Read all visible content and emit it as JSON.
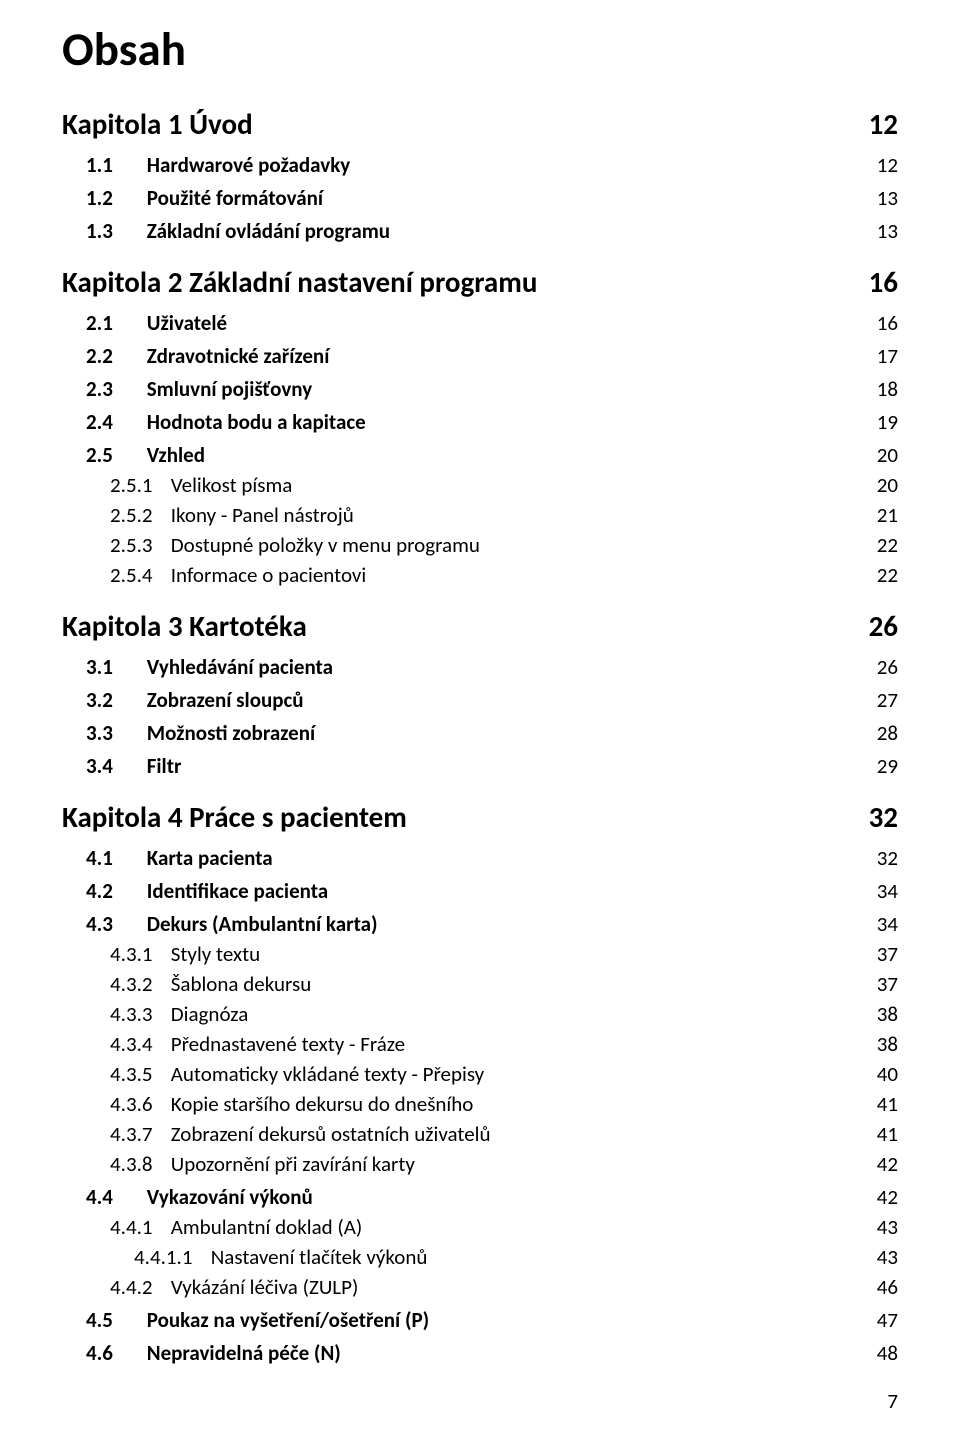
{
  "document_title": "Obsah",
  "page_number": "7",
  "toc": [
    {
      "level": "chapter",
      "num": "Kapitola 1",
      "sep": "   ",
      "label": "Úvod",
      "page": "12"
    },
    {
      "level": "section",
      "num": "1.1",
      "label": "Hardwarové požadavky",
      "page": "12"
    },
    {
      "level": "section",
      "num": "1.2",
      "label": "Použité formátování",
      "page": "13"
    },
    {
      "level": "section",
      "num": "1.3",
      "label": "Základní ovládání programu",
      "page": "13"
    },
    {
      "level": "chapter",
      "num": "Kapitola 2",
      "sep": "   ",
      "label": "Základní nastavení programu",
      "page": "16"
    },
    {
      "level": "section",
      "num": "2.1",
      "label": "Uživatelé",
      "page": "16"
    },
    {
      "level": "section",
      "num": "2.2",
      "label": "Zdravotnické zařízení",
      "page": "17"
    },
    {
      "level": "section",
      "num": "2.3",
      "label": "Smluvní pojišťovny",
      "page": "18"
    },
    {
      "level": "section",
      "num": "2.4",
      "label": "Hodnota bodu a kapitace",
      "page": "19"
    },
    {
      "level": "section",
      "num": "2.5",
      "label": "Vzhled",
      "page": "20"
    },
    {
      "level": "subsection",
      "num": "2.5.1",
      "label": "Velikost písma",
      "page": "20"
    },
    {
      "level": "subsection",
      "num": "2.5.2",
      "label": "Ikony - Panel nástrojů",
      "page": "21"
    },
    {
      "level": "subsection",
      "num": "2.5.3",
      "label": "Dostupné položky v menu programu",
      "page": "22"
    },
    {
      "level": "subsection",
      "num": "2.5.4",
      "label": "Informace o pacientovi",
      "page": "22"
    },
    {
      "level": "chapter",
      "num": "Kapitola 3",
      "sep": "   ",
      "label": "Kartotéka",
      "page": "26"
    },
    {
      "level": "section",
      "num": "3.1",
      "label": "Vyhledávání pacienta",
      "page": "26"
    },
    {
      "level": "section",
      "num": "3.2",
      "label": "Zobrazení sloupců",
      "page": "27"
    },
    {
      "level": "section",
      "num": "3.3",
      "label": "Možnosti zobrazení",
      "page": "28"
    },
    {
      "level": "section",
      "num": "3.4",
      "label": "Filtr",
      "page": "29"
    },
    {
      "level": "chapter",
      "num": "Kapitola 4",
      "sep": "   ",
      "label": "Práce s pacientem",
      "page": "32"
    },
    {
      "level": "section",
      "num": "4.1",
      "label": "Karta pacienta",
      "page": "32"
    },
    {
      "level": "section",
      "num": "4.2",
      "label": "Identifikace pacienta",
      "page": "34"
    },
    {
      "level": "section",
      "num": "4.3",
      "label": "Dekurs (Ambulantní karta)",
      "page": "34"
    },
    {
      "level": "subsection",
      "num": "4.3.1",
      "label": "Styly textu",
      "page": "37"
    },
    {
      "level": "subsection",
      "num": "4.3.2",
      "label": "Šablona dekursu",
      "page": "37"
    },
    {
      "level": "subsection",
      "num": "4.3.3",
      "label": "Diagnóza",
      "page": "38"
    },
    {
      "level": "subsection",
      "num": "4.3.4",
      "label": "Přednastavené texty - Fráze",
      "page": "38"
    },
    {
      "level": "subsection",
      "num": "4.3.5",
      "label": "Automaticky vkládané texty - Přepisy",
      "page": "40"
    },
    {
      "level": "subsection",
      "num": "4.3.6",
      "label": "Kopie staršího dekursu do dnešního",
      "page": "41"
    },
    {
      "level": "subsection",
      "num": "4.3.7",
      "label": "Zobrazení dekursů ostatních uživatelů",
      "page": "41"
    },
    {
      "level": "subsection",
      "num": "4.3.8",
      "label": "Upozornění při zavírání karty",
      "page": "42"
    },
    {
      "level": "section",
      "num": "4.4",
      "label": "Vykazování výkonů",
      "page": "42"
    },
    {
      "level": "subsection",
      "num": "4.4.1",
      "label": "Ambulantní doklad (A)",
      "page": "43"
    },
    {
      "level": "subsubsection",
      "num": "4.4.1.1",
      "label": "Nastavení tlačítek výkonů",
      "page": "43"
    },
    {
      "level": "subsection",
      "num": "4.4.2",
      "label": "Vykázání léčiva (ZULP)",
      "page": "46"
    },
    {
      "level": "section",
      "num": "4.5",
      "label": "Poukaz na vyšetření/ošetření (P)",
      "page": "47"
    },
    {
      "level": "section",
      "num": "4.6",
      "label": "Nepravidelná péče (N)",
      "page": "48"
    }
  ]
}
